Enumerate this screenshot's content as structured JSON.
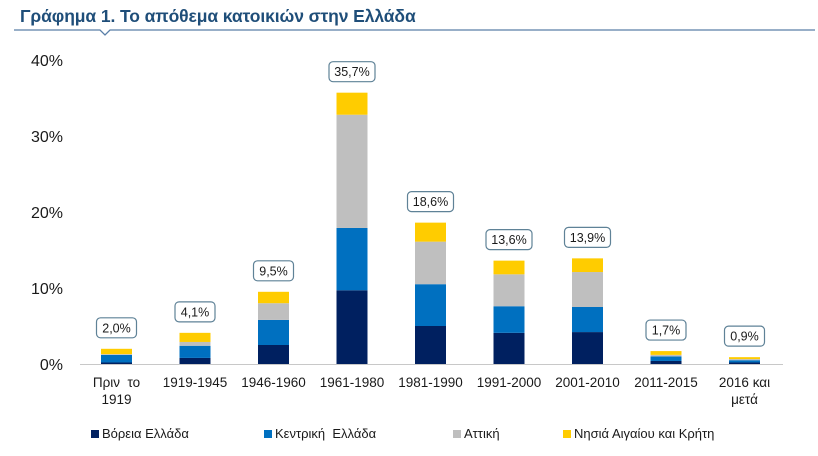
{
  "title": "Γράφημα 1. Το απόθεμα κατοικιών στην Ελλάδα",
  "colors": {
    "title": "#1f4e79",
    "underline": "#5a7fa8",
    "label_border": "#5f8297",
    "axis": "#c8c8c8"
  },
  "chart_data": {
    "type": "bar",
    "stacked": true,
    "title": "Γράφημα 1. Το απόθεμα κατοικιών στην Ελλάδα",
    "xlabel": "",
    "ylabel": "",
    "ylim": [
      0,
      40
    ],
    "yticks": [
      0,
      10,
      20,
      30,
      40
    ],
    "ytick_labels": [
      "0%",
      "10%",
      "20%",
      "30%",
      "40%"
    ],
    "grid": false,
    "legend_position": "bottom",
    "categories": [
      [
        "Πριν  το",
        "1919"
      ],
      [
        "1919-1945"
      ],
      [
        "1946-1960"
      ],
      [
        "1961-1980"
      ],
      [
        "1981-1990"
      ],
      [
        "1991-2000"
      ],
      [
        "2001-2010"
      ],
      [
        "2011-2015"
      ],
      [
        "2016 και",
        "μετά"
      ]
    ],
    "totals": [
      2.0,
      4.1,
      9.5,
      35.7,
      18.6,
      13.6,
      13.9,
      1.7,
      0.9
    ],
    "total_labels": [
      "2,0%",
      "4,1%",
      "9,5%",
      "35,7%",
      "18,6%",
      "13,6%",
      "13,9%",
      "1,7%",
      "0,9%"
    ],
    "series": [
      {
        "name": "Βόρεια Ελλάδα",
        "color": "#002060",
        "values": [
          0.2,
          0.8,
          2.5,
          9.7,
          5.0,
          4.1,
          4.2,
          0.4,
          0.2
        ]
      },
      {
        "name": "Κεντρική  Ελλάδα",
        "color": "#0070c0",
        "values": [
          1.0,
          1.6,
          3.3,
          8.2,
          5.5,
          3.5,
          3.3,
          0.6,
          0.3
        ]
      },
      {
        "name": "Αττική",
        "color": "#bfbfbf",
        "values": [
          0.1,
          0.5,
          2.2,
          14.9,
          5.6,
          4.2,
          4.6,
          0.2,
          0.15
        ]
      },
      {
        "name": "Νησιά Αιγαίου και Κρήτη",
        "color": "#ffcc00",
        "values": [
          0.7,
          1.2,
          1.5,
          2.9,
          2.5,
          1.8,
          1.8,
          0.5,
          0.25
        ]
      }
    ]
  }
}
